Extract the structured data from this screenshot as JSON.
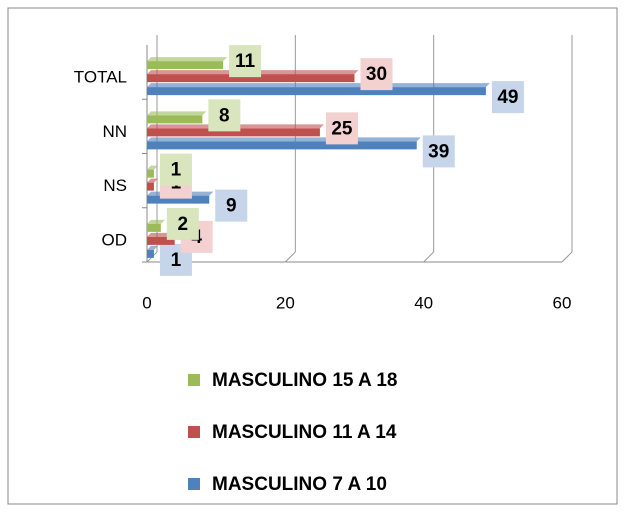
{
  "chart_data": {
    "type": "bar",
    "orientation": "horizontal",
    "categories": [
      "OD",
      "NS",
      "NN",
      "TOTAL"
    ],
    "series": [
      {
        "name": "MASCULINO 7 A 10",
        "color": "#4f81bd",
        "label_bg": "#c6d5ea",
        "values": [
          1,
          9,
          39,
          49
        ]
      },
      {
        "name": "MASCULINO 11 A 14",
        "color": "#c0504d",
        "label_bg": "#f2d1d0",
        "values": [
          4,
          1,
          25,
          30
        ]
      },
      {
        "name": "MASCULINO 15 A 18",
        "color": "#9bbb59",
        "label_bg": "#d8e5bd",
        "values": [
          2,
          1,
          8,
          11
        ]
      }
    ],
    "xlim": [
      0,
      60
    ],
    "xticks": [
      0,
      20,
      40,
      60
    ],
    "grid": true
  }
}
